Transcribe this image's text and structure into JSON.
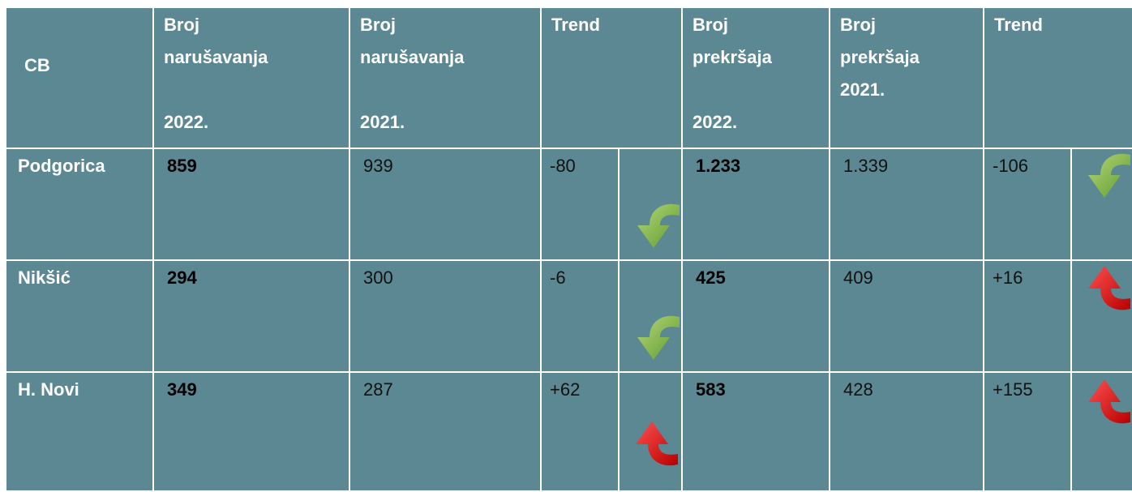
{
  "header": {
    "cells": [
      [
        "CB"
      ],
      [
        "Broj",
        "narušavanja",
        "2022."
      ],
      [
        "Broj",
        "narušavanja",
        "2021."
      ],
      [
        "Trend"
      ],
      [
        "Broj",
        "prekršaja",
        "2022."
      ],
      [
        "Broj",
        "prekršaja",
        "2021."
      ],
      [
        "Trend"
      ]
    ]
  },
  "rows": [
    [
      "Podgorica",
      "859",
      "939",
      "-80",
      "1.233",
      "1.339",
      "-106"
    ],
    [
      "Nikšić",
      "294",
      "300",
      "-6",
      "425",
      "409",
      "+16"
    ],
    [
      "H. Novi",
      "349",
      "287",
      "+62",
      "583",
      "428",
      "+155"
    ]
  ]
}
